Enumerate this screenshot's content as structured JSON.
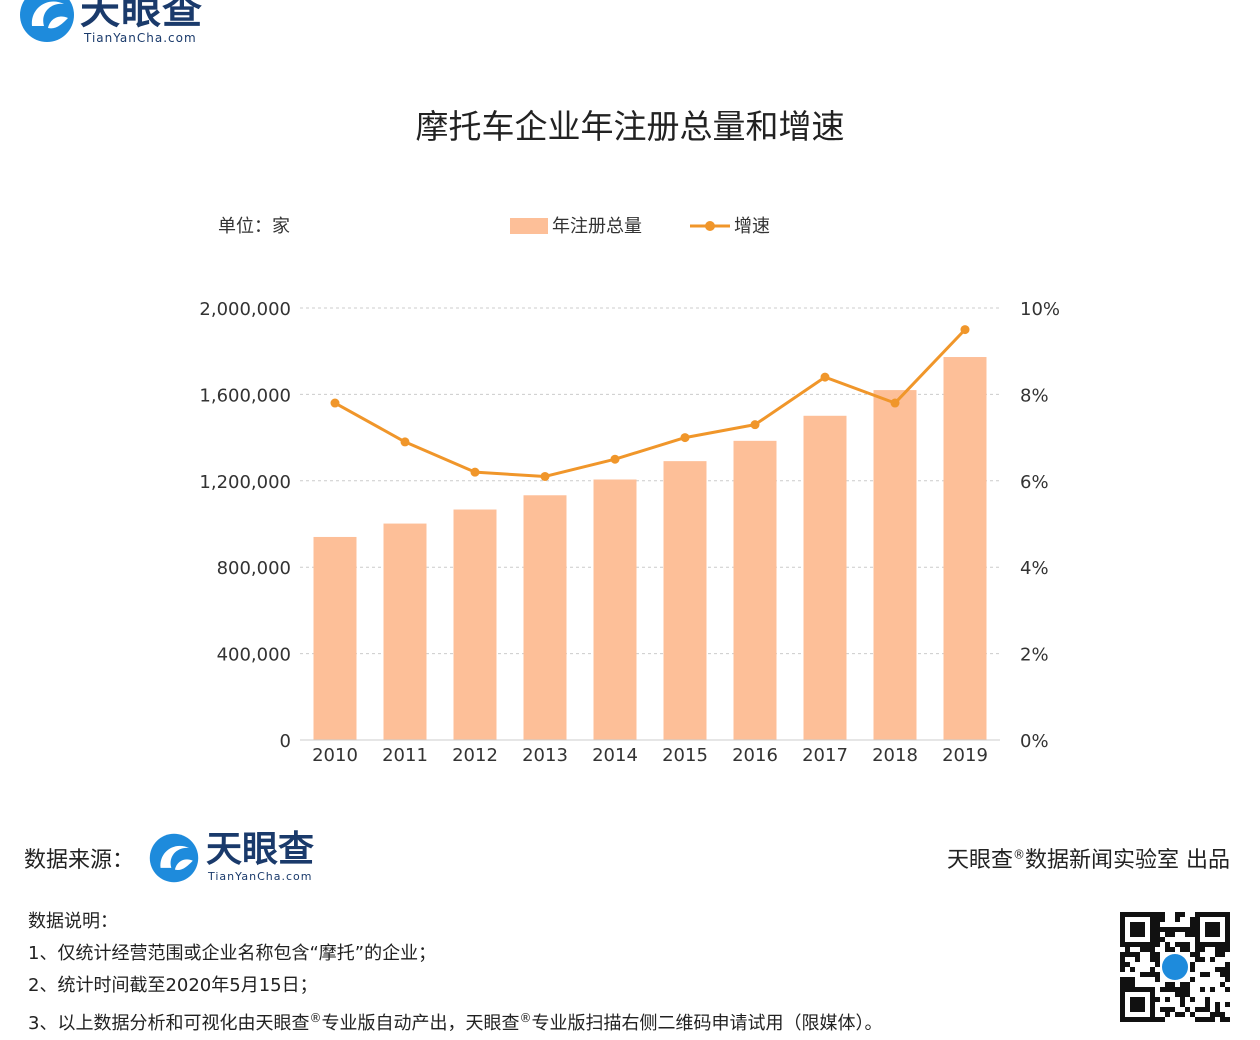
{
  "brand": {
    "name_cn": "天眼查",
    "name_en": "TianYanCha.com"
  },
  "title": "摩托车企业年注册总量和增速",
  "unit_label": "单位：家",
  "footer": {
    "source_label": "数据来源：",
    "credit_prefix": "天眼查",
    "credit_suffix": "数据新闻实验室 出品",
    "notes_title": "数据说明：",
    "notes": [
      "1、仅统计经营范围或企业名称包含“摩托”的企业；",
      "2、统计时间截至2020年5月15日；"
    ],
    "note3_part1": "3、以上数据分析和可视化由天眼查",
    "note3_part2": "专业版自动产出，天眼查",
    "note3_part3": "专业版扫描右侧二维码申请试用（限媒体）。",
    "registered_mark": "®"
  },
  "chart_data": {
    "type": "bar",
    "title": "摩托车企业年注册总量和增速",
    "categories": [
      "2010",
      "2011",
      "2012",
      "2013",
      "2014",
      "2015",
      "2016",
      "2017",
      "2018",
      "2019"
    ],
    "series": [
      {
        "name": "年注册总量",
        "type": "bar",
        "axis": "left",
        "color": "#fdbf98",
        "values": [
          940000,
          1002000,
          1067000,
          1133000,
          1206000,
          1291000,
          1385000,
          1501000,
          1620000,
          1773000
        ]
      },
      {
        "name": "增速",
        "type": "line",
        "axis": "right",
        "color": "#f0962a",
        "values": [
          7.8,
          6.9,
          6.2,
          6.1,
          6.5,
          7.0,
          7.3,
          8.4,
          7.8,
          9.5
        ]
      }
    ],
    "left_axis": {
      "min": 0,
      "max": 2000000,
      "ticks": [
        "0",
        "400,000",
        "800,000",
        "1,200,000",
        "1,600,000",
        "2,000,000"
      ]
    },
    "right_axis": {
      "min": 0,
      "max": 10,
      "ticks": [
        "0%",
        "2%",
        "4%",
        "6%",
        "8%",
        "10%"
      ]
    },
    "grid": true,
    "legend_position": "top-center"
  }
}
